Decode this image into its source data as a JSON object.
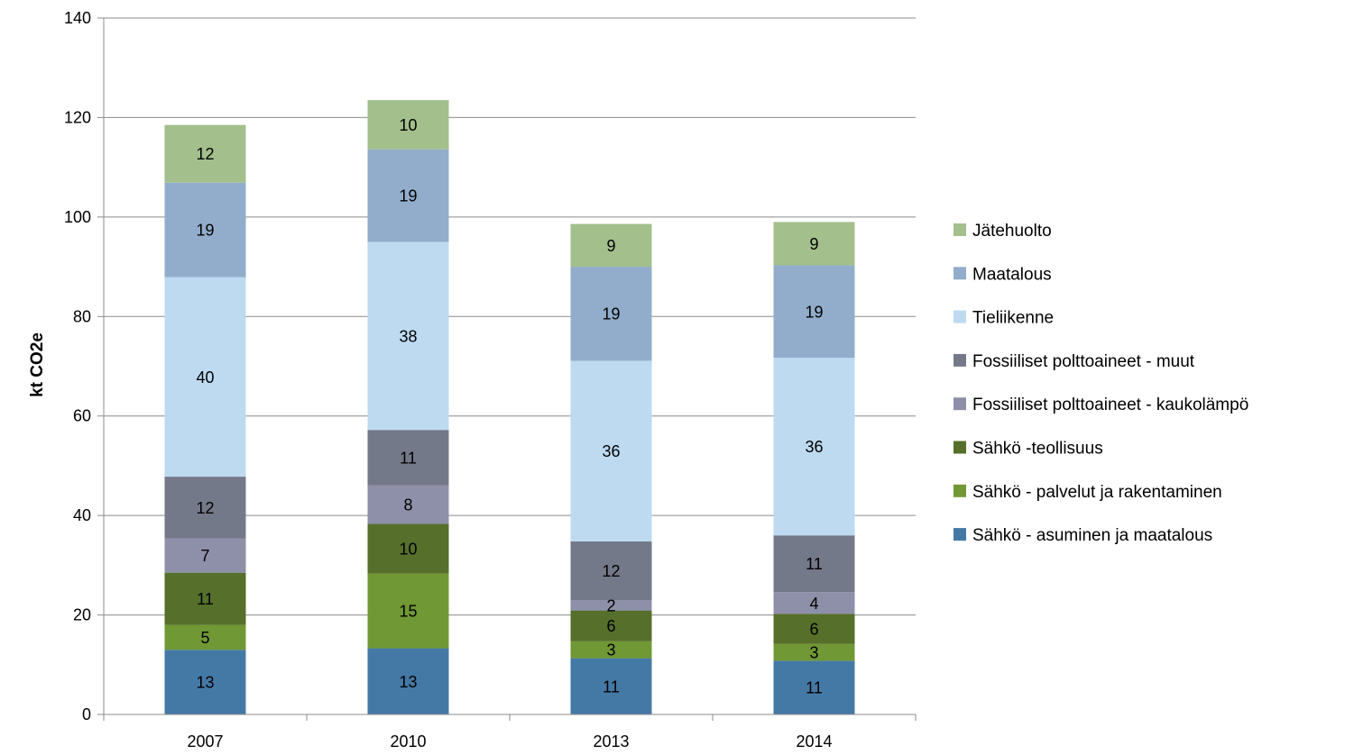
{
  "chart_data": {
    "type": "bar",
    "stacked": true,
    "title": "",
    "xlabel": "",
    "ylabel": "kt CO2e",
    "ylim": [
      0,
      140
    ],
    "yticks": [
      0,
      20,
      40,
      60,
      80,
      100,
      120,
      140
    ],
    "ytick_labels": [
      "0",
      "20",
      "40",
      "60",
      "80",
      "100",
      "120",
      "140"
    ],
    "grid": true,
    "legend_position": "right",
    "categories": [
      "2007",
      "2010",
      "2013",
      "2014"
    ],
    "series": [
      {
        "name": "Sähkö - asuminen ja maatalous",
        "color": "#4479A6",
        "values": [
          13,
          13.3,
          11.3,
          10.8
        ],
        "labels": [
          "13",
          "13",
          "11",
          "11"
        ]
      },
      {
        "name": "Sähkö - palvelut ja rakentaminen",
        "color": "#709834",
        "values": [
          5,
          15,
          3.4,
          3.4
        ],
        "labels": [
          "5",
          "15",
          "3",
          "3"
        ]
      },
      {
        "name": "Sähkö -teollisuus",
        "color": "#566F2B",
        "values": [
          10.5,
          10,
          6.2,
          6
        ],
        "labels": [
          "11",
          "10",
          "6",
          "6"
        ]
      },
      {
        "name": "Fossiiliset polttoaineet - kaukolämpö",
        "color": "#8E8FA8",
        "values": [
          6.9,
          7.8,
          2.1,
          4.4
        ],
        "labels": [
          "7",
          "8",
          "2",
          "4"
        ]
      },
      {
        "name": "Fossiiliset polttoaineet - muut",
        "color": "#747989",
        "values": [
          12.4,
          11.1,
          11.8,
          11.4
        ],
        "labels": [
          "12",
          "11",
          "12",
          "11"
        ]
      },
      {
        "name": "Tieliikenne",
        "color": "#BDDAF1",
        "values": [
          40.1,
          37.8,
          36.3,
          35.7
        ],
        "labels": [
          "40",
          "38",
          "36",
          "36"
        ]
      },
      {
        "name": "Maatalous",
        "color": "#91ADCB",
        "values": [
          19,
          18.6,
          18.9,
          18.6
        ],
        "labels": [
          "19",
          "19",
          "19",
          "19"
        ]
      },
      {
        "name": "Jätehuolto",
        "color": "#A3BF8C",
        "values": [
          11.6,
          9.9,
          8.6,
          8.7
        ],
        "labels": [
          "12",
          "10",
          "9",
          "9"
        ]
      }
    ]
  }
}
